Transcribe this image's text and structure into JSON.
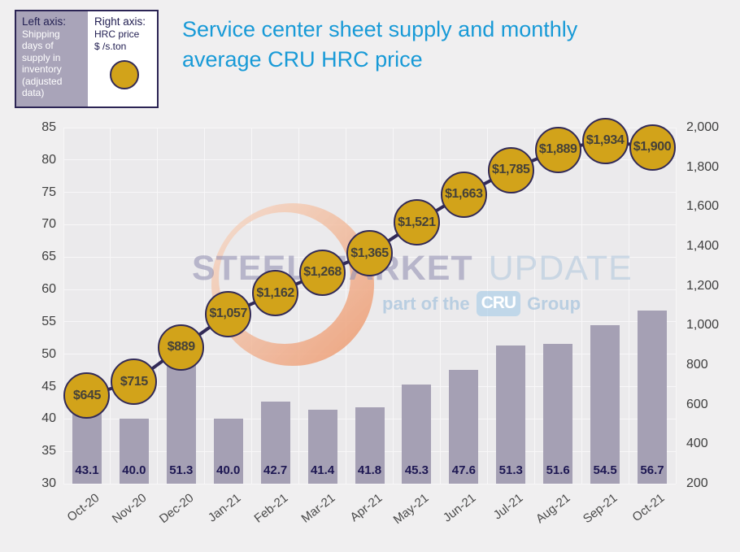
{
  "title": {
    "line1": "Service center sheet supply and monthly",
    "line2": "average CRU HRC price"
  },
  "legend": {
    "left_cell": {
      "heading": "Left axis:",
      "body": "Shipping days of supply in inventory (adjusted data)"
    },
    "right_cell": {
      "heading": "Right axis:",
      "subline1": "HRC price",
      "subline2": "$ /s.ton",
      "marker_icon": "gold-circle"
    }
  },
  "watermark": {
    "brand_primary": "STEEL MARKET",
    "brand_secondary": "UPDATE",
    "tagline_prefix": "part of the",
    "tagline_badge": "CRU",
    "tagline_suffix": "Group"
  },
  "colors": {
    "title": "#189AD7",
    "page_bg": "#F0EFF0",
    "plot_bg": "#EBEAEC",
    "grid": "#F8F7F8",
    "bar": "#A5A0B4",
    "bar_label": "#1D1752",
    "line": "#322A57",
    "marker_fill": "#D2A31A",
    "marker_border": "#322A57",
    "marker_text": "#454139",
    "axis_text": "#3E3E3E",
    "legend_border": "#2B2454",
    "legend_left_bg": "#A9A4B9",
    "legend_heading": "#232053",
    "crescent": "#EC9468"
  },
  "chart_data": {
    "type": "bar+line",
    "title": "Service center sheet supply and monthly average CRU HRC price",
    "categories": [
      "Oct-20",
      "Nov-20",
      "Dec-20",
      "Jan-21",
      "Feb-21",
      "Mar-21",
      "Apr-21",
      "May-21",
      "Jun-21",
      "Jul-21",
      "Aug-21",
      "Sep-21",
      "Oct-21"
    ],
    "series": [
      {
        "name": "Shipping days of supply in inventory (adjusted data)",
        "type": "bar",
        "axis": "left",
        "values": [
          43.1,
          40.0,
          51.3,
          40.0,
          42.7,
          41.4,
          41.8,
          45.3,
          47.6,
          51.3,
          51.6,
          54.5,
          56.7
        ],
        "value_labels": [
          "43.1",
          "40.0",
          "51.3",
          "40.0",
          "42.7",
          "41.4",
          "41.8",
          "45.3",
          "47.6",
          "51.3",
          "51.6",
          "54.5",
          "56.7"
        ]
      },
      {
        "name": "HRC price $ /s.ton",
        "type": "line",
        "axis": "right",
        "values": [
          645,
          715,
          889,
          1057,
          1162,
          1268,
          1365,
          1521,
          1663,
          1785,
          1889,
          1934,
          1900
        ],
        "value_labels": [
          "$645",
          "$715",
          "$889",
          "$1,057",
          "$1,162",
          "$1,268",
          "$1,365",
          "$1,521",
          "$1,663",
          "$1,785",
          "$1,889",
          "$1,934",
          "$1,900"
        ]
      }
    ],
    "left_axis": {
      "min": 30,
      "max": 85,
      "step": 5,
      "tick_labels": [
        "85",
        "80",
        "75",
        "70",
        "65",
        "60",
        "55",
        "50",
        "45",
        "40",
        "35",
        "30"
      ]
    },
    "right_axis": {
      "min": 200,
      "max": 2000,
      "step": 200,
      "tick_labels": [
        "2,000",
        "1,800",
        "1,600",
        "1,400",
        "1,200",
        "1,000",
        "800",
        "600",
        "400",
        "200"
      ]
    },
    "grid": true,
    "legend_position": "top-left"
  }
}
